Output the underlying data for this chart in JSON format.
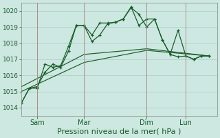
{
  "background_color": "#cce8e0",
  "grid_color": "#aacccc",
  "line_color": "#1a5c2a",
  "vline_color": "#b08080",
  "xlabel": "Pression niveau de la mer( hPa )",
  "ylim": [
    1013.5,
    1020.5
  ],
  "yticks": [
    1014,
    1015,
    1016,
    1017,
    1018,
    1019,
    1020
  ],
  "ytick_fontsize": 6.5,
  "xtick_fontsize": 7,
  "xlabel_fontsize": 8,
  "x_tick_labels": [
    "Sam",
    "Mar",
    "Dim",
    "Lun"
  ],
  "x_tick_positions": [
    2,
    8,
    16,
    21
  ],
  "x_vline_positions": [
    2,
    8,
    16,
    21
  ],
  "xlim": [
    0,
    25
  ],
  "series1_x": [
    0,
    1,
    2,
    3,
    4,
    5,
    6,
    7,
    8,
    9,
    10,
    11,
    12,
    13,
    14,
    15,
    16,
    17,
    18,
    19,
    20,
    21,
    22,
    23,
    24
  ],
  "series1_y": [
    1014.3,
    1015.2,
    1015.2,
    1016.7,
    1016.5,
    1016.6,
    1017.8,
    1019.1,
    1019.1,
    1018.1,
    1018.5,
    1019.2,
    1019.3,
    1019.5,
    1020.2,
    1019.8,
    1019.0,
    1019.5,
    1018.2,
    1017.3,
    1018.8,
    1017.2,
    1017.0,
    1017.2,
    1017.2
  ],
  "series2_x": [
    0,
    1,
    2,
    3,
    4,
    5,
    6,
    7,
    8,
    9,
    10,
    11,
    12,
    13,
    14,
    15,
    16,
    17,
    18,
    19,
    20,
    21,
    22,
    23,
    24
  ],
  "series2_y": [
    1014.3,
    1015.2,
    1015.3,
    1016.2,
    1016.7,
    1016.5,
    1017.5,
    1019.1,
    1019.1,
    1018.5,
    1019.25,
    1019.25,
    1019.3,
    1019.5,
    1020.25,
    1019.1,
    1019.5,
    1019.5,
    1018.2,
    1017.3,
    1017.15,
    1017.2,
    1017.0,
    1017.2,
    1017.2
  ],
  "series3_x": [
    0,
    8,
    16,
    24
  ],
  "series3_y": [
    1015.0,
    1016.8,
    1017.55,
    1017.2
  ],
  "series4_x": [
    0,
    8,
    16,
    24
  ],
  "series4_y": [
    1015.3,
    1017.3,
    1017.65,
    1017.2
  ]
}
